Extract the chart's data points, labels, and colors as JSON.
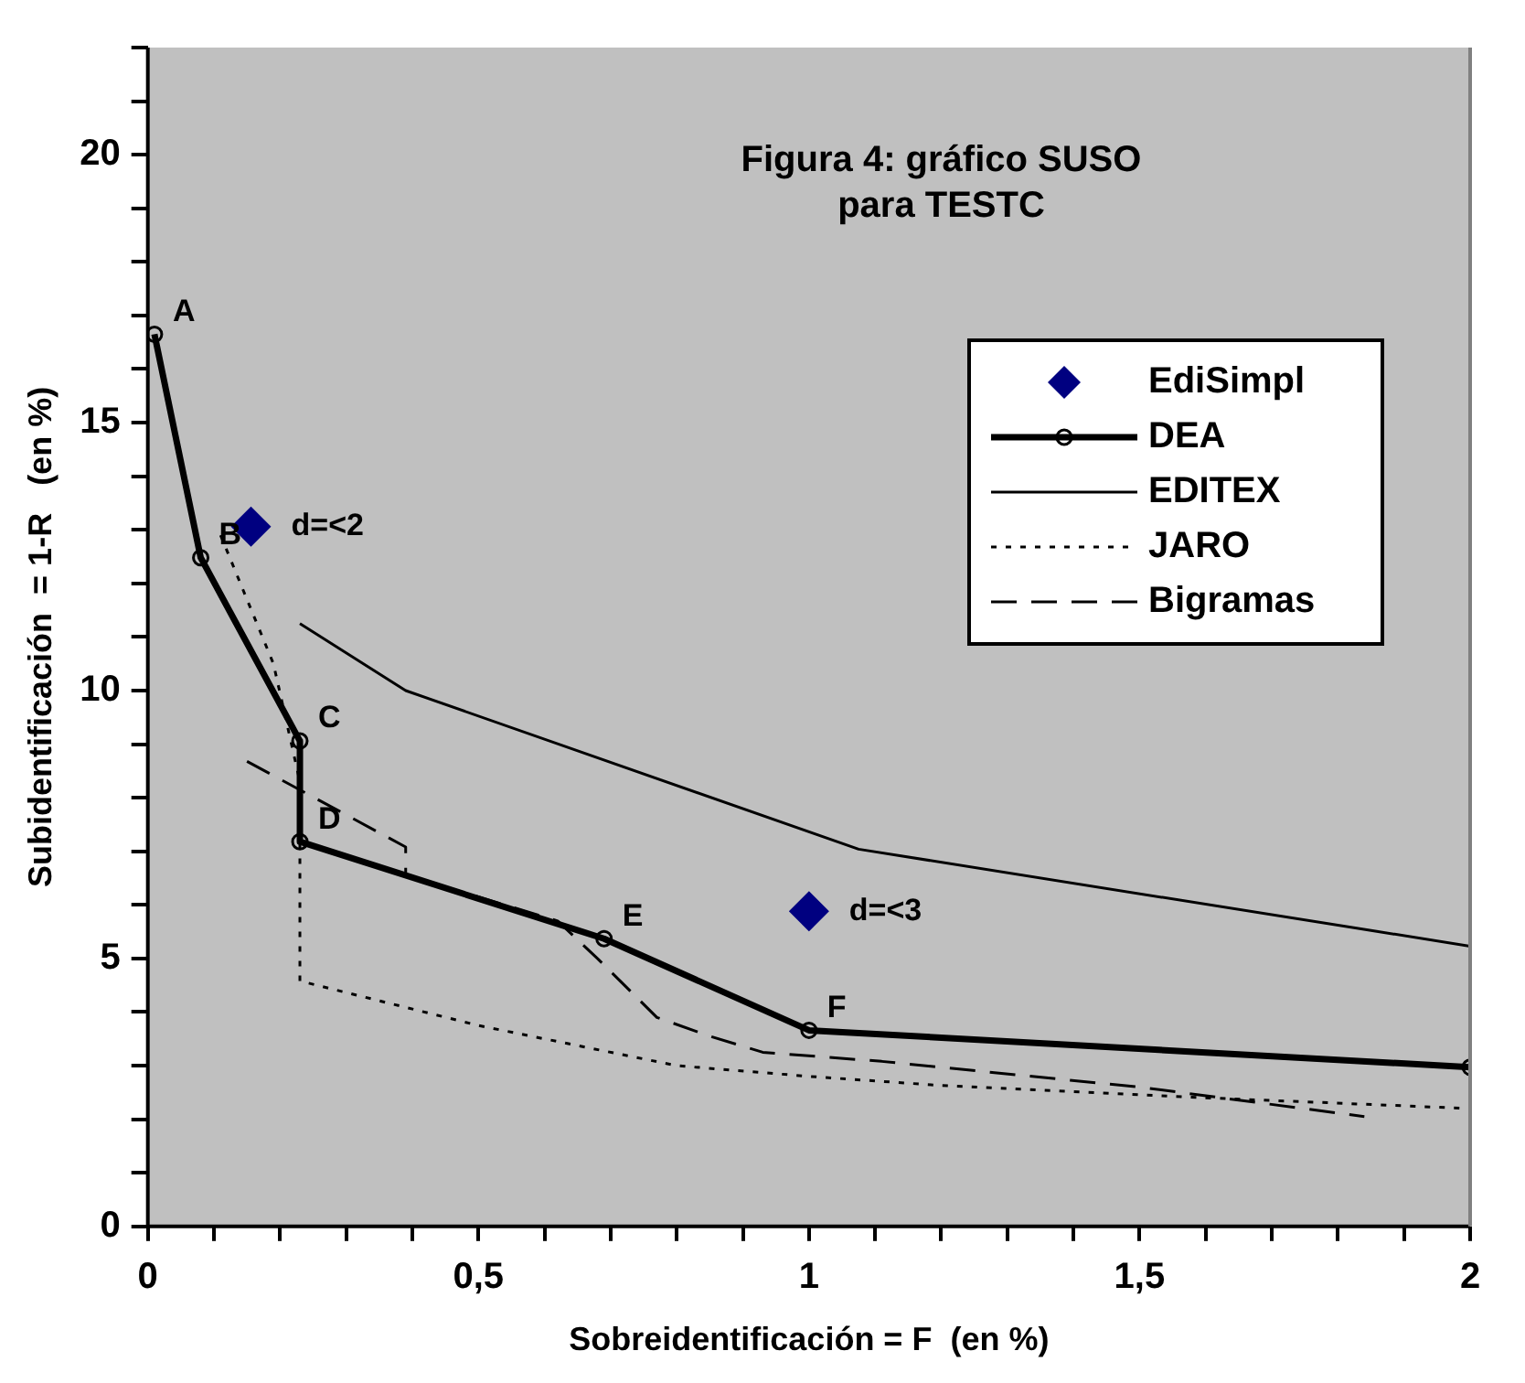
{
  "chart_data": {
    "type": "line",
    "title": "Figura 4: gráfico SUSO\npara TESTC",
    "xlabel": "Sobreidentificación = F  (en %)",
    "ylabel": "Subidentificación  = 1-R   (en %)",
    "xlim": [
      0,
      2
    ],
    "ylim": [
      0,
      22
    ],
    "xticks": [
      0,
      {
        "value": 0.1,
        "label": null
      },
      {
        "value": 0.2,
        "label": null
      },
      {
        "value": 0.3,
        "label": null
      },
      {
        "value": 0.4,
        "label": null
      },
      {
        "value": 0.5,
        "label": "0,5"
      },
      {
        "value": 0.6,
        "label": null
      },
      {
        "value": 0.7,
        "label": null
      },
      {
        "value": 0.8,
        "label": null
      },
      {
        "value": 0.9,
        "label": null
      },
      1,
      {
        "value": 1.1,
        "label": null
      },
      {
        "value": 1.2,
        "label": null
      },
      {
        "value": 1.3,
        "label": null
      },
      {
        "value": 1.4,
        "label": null
      },
      {
        "value": 1.5,
        "label": "1,5"
      },
      {
        "value": 1.6,
        "label": null
      },
      {
        "value": 1.7,
        "label": null
      },
      {
        "value": 1.8,
        "label": null
      },
      {
        "value": 1.9,
        "label": null
      },
      2
    ],
    "yticks": [
      0,
      {
        "value": 1,
        "label": null
      },
      {
        "value": 2,
        "label": null
      },
      {
        "value": 3,
        "label": null
      },
      {
        "value": 4,
        "label": null
      },
      5,
      {
        "value": 6,
        "label": null
      },
      {
        "value": 7,
        "label": null
      },
      {
        "value": 8,
        "label": null
      },
      {
        "value": 9,
        "label": null
      },
      10,
      {
        "value": 11,
        "label": null
      },
      {
        "value": 12,
        "label": null
      },
      {
        "value": 13,
        "label": null
      },
      {
        "value": 14,
        "label": null
      },
      15,
      {
        "value": 16,
        "label": null
      },
      {
        "value": 17,
        "label": null
      },
      {
        "value": 18,
        "label": null
      },
      {
        "value": 19,
        "label": null
      },
      20,
      {
        "value": 21,
        "label": null
      },
      {
        "value": 22,
        "label": null
      }
    ],
    "grid": false,
    "legend": "top right",
    "series": [
      {
        "name": "EdiSimpl",
        "type": "scatter",
        "color": "#000080",
        "marker": "diamond",
        "x": [
          0.156,
          1.0
        ],
        "values": [
          13.06,
          5.88
        ]
      },
      {
        "name": "DEA",
        "color": "#000000",
        "marker": "circle",
        "line_style": "solid",
        "x": [
          0.01,
          0.08,
          0.23,
          0.23,
          0.69,
          1.0,
          2.0
        ],
        "values": [
          16.65,
          12.48,
          9.06,
          7.18,
          5.37,
          3.66,
          2.97
        ]
      },
      {
        "name": "EDITEX",
        "color": "#000000",
        "marker": "none",
        "line_style": "solid",
        "x": [
          0.23,
          0.39,
          1.075,
          2.0
        ],
        "values": [
          11.25,
          10.0,
          7.04,
          5.23
        ]
      },
      {
        "name": "JARO",
        "color": "#000000",
        "marker": "none",
        "line_style": "dotted",
        "x": [
          0.11,
          0.19,
          0.23,
          0.23,
          0.5,
          0.8,
          1.0,
          1.2,
          1.6,
          2.0
        ],
        "values": [
          12.9,
          10.5,
          8.3,
          4.58,
          3.75,
          3.0,
          2.8,
          2.63,
          2.4,
          2.2
        ]
      },
      {
        "name": "Bigramas",
        "color": "#000000",
        "marker": "none",
        "line_style": "dashed",
        "x": [
          0.15,
          0.39,
          0.39,
          0.62,
          0.68,
          0.77,
          0.85,
          0.93,
          1.11,
          1.5,
          1.84
        ],
        "values": [
          8.68,
          7.08,
          6.56,
          5.7,
          5.0,
          3.9,
          3.55,
          3.25,
          3.08,
          2.6,
          2.05
        ]
      }
    ],
    "annotations": [
      {
        "text": "A",
        "x": 0.01,
        "y": 16.65
      },
      {
        "text": "B",
        "x": 0.08,
        "y": 12.48
      },
      {
        "text": "C",
        "x": 0.23,
        "y": 9.06
      },
      {
        "text": "D",
        "x": 0.23,
        "y": 7.18
      },
      {
        "text": "E",
        "x": 0.69,
        "y": 5.37
      },
      {
        "text": "F",
        "x": 1.0,
        "y": 3.66
      },
      {
        "text": "d=<2",
        "x": 0.156,
        "y": 13.06
      },
      {
        "text": "d=<3",
        "x": 1.0,
        "y": 5.88
      }
    ]
  }
}
